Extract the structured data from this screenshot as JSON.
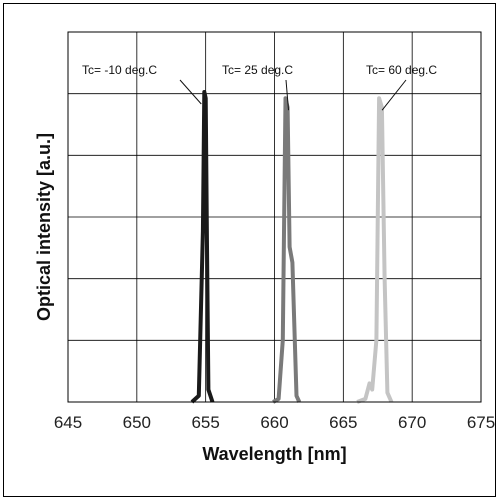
{
  "chart_data": {
    "type": "line",
    "xlabel": "Wavelength [nm]",
    "ylabel": "Optical intensity [a.u.]",
    "xlim": [
      645,
      675
    ],
    "ylim": [
      0,
      1.0
    ],
    "x_ticks": [
      645,
      650,
      655,
      660,
      665,
      670,
      675
    ],
    "y_tick_count": 6,
    "grid": true,
    "series": [
      {
        "name": "Tc= -10 deg.C",
        "color": "#1a1a1a",
        "x": [
          654.0,
          654.5,
          654.8,
          654.9,
          655.0,
          655.1,
          655.2,
          655.5
        ],
        "y": [
          0.0,
          0.02,
          0.55,
          1.0,
          0.98,
          0.5,
          0.04,
          0.0
        ]
      },
      {
        "name": "Tc= 25 deg.C",
        "color": "#7a7a7a",
        "x": [
          659.9,
          660.3,
          660.6,
          660.8,
          660.95,
          661.1,
          661.3,
          661.6,
          661.8
        ],
        "y": [
          0.0,
          0.01,
          0.2,
          0.98,
          0.95,
          0.5,
          0.45,
          0.02,
          0.0
        ]
      },
      {
        "name": "Tc= 60 deg.C",
        "color": "#c4c4c4",
        "x": [
          666.0,
          666.6,
          666.9,
          667.1,
          667.4,
          667.6,
          667.8,
          668.0,
          668.2,
          668.5
        ],
        "y": [
          0.0,
          0.01,
          0.06,
          0.04,
          0.2,
          0.98,
          0.95,
          0.4,
          0.03,
          0.0
        ]
      }
    ],
    "annotations": [
      {
        "text": "Tc= -10 deg.C",
        "series": 0
      },
      {
        "text": "Tc= 25 deg.C",
        "series": 1
      },
      {
        "text": "Tc= 60 deg.C",
        "series": 2
      }
    ]
  }
}
